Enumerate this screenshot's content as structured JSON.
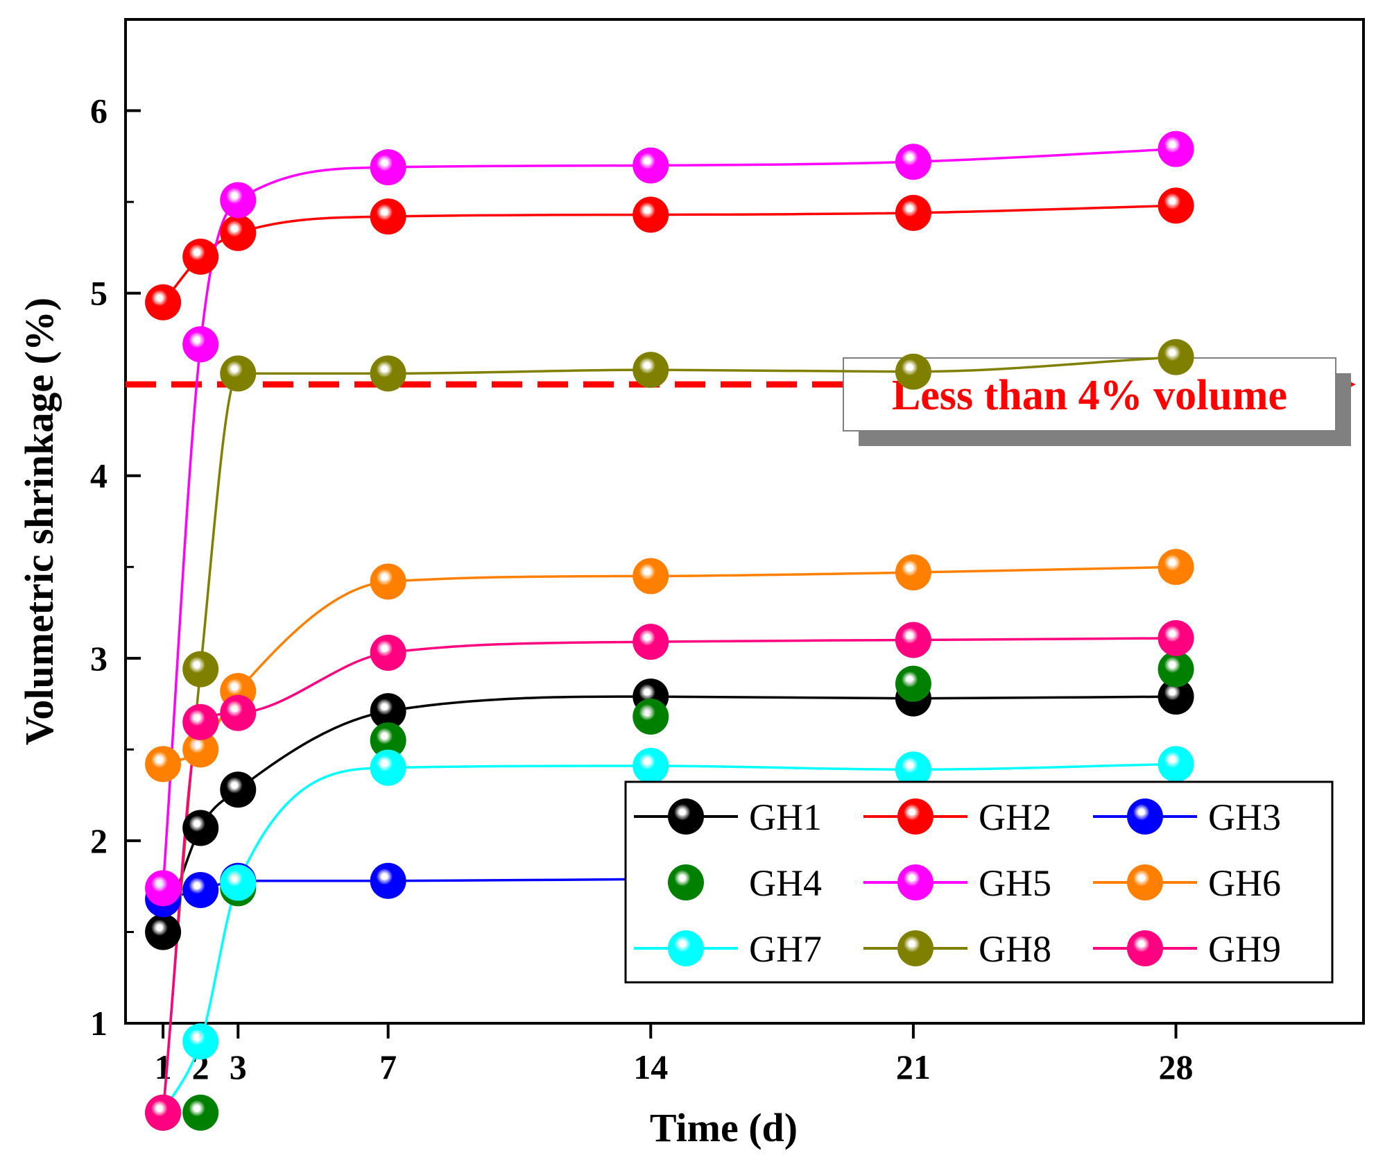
{
  "chart_data": {
    "type": "line",
    "title": "",
    "xlabel": "Time (d)",
    "ylabel": "Volumetric shrinkage (%)",
    "x": [
      1,
      2,
      3,
      7,
      14,
      21,
      28
    ],
    "x_tick_labels": [
      "1",
      "2",
      "3",
      "7",
      "14",
      "21",
      "28"
    ],
    "xlim": [
      0,
      33
    ],
    "ylim": [
      1,
      6.5
    ],
    "y_ticks": [
      1,
      2,
      3,
      4,
      5,
      6
    ],
    "y_tick_labels": [
      "1",
      "2",
      "3",
      "4",
      "5",
      "6"
    ],
    "grid": false,
    "legend_position": "bottom-right",
    "series": [
      {
        "name": "GH1",
        "color": "#000000",
        "line": true,
        "values": [
          1.5,
          2.07,
          2.28,
          2.71,
          2.79,
          2.78,
          2.79
        ]
      },
      {
        "name": "GH2",
        "color": "#ff0000",
        "line": true,
        "values": [
          4.95,
          5.2,
          5.33,
          5.42,
          5.43,
          5.44,
          5.48
        ]
      },
      {
        "name": "GH3",
        "color": "#0000ff",
        "line": true,
        "values": [
          1.68,
          1.73,
          1.78,
          1.78,
          1.79,
          1.8,
          1.81
        ]
      },
      {
        "name": "GH4",
        "color": "#008000",
        "line": false,
        "values": [
          0.51,
          0.51,
          1.74,
          2.55,
          2.68,
          2.86,
          2.94
        ]
      },
      {
        "name": "GH5",
        "color": "#ff00ff",
        "line": true,
        "values": [
          1.74,
          4.72,
          5.51,
          5.69,
          5.7,
          5.72,
          5.79
        ]
      },
      {
        "name": "GH6",
        "color": "#ff8000",
        "line": true,
        "values": [
          2.42,
          2.5,
          2.82,
          3.42,
          3.45,
          3.47,
          3.5
        ]
      },
      {
        "name": "GH7",
        "color": "#00ffff",
        "line": true,
        "values": [
          0.51,
          0.9,
          1.77,
          2.4,
          2.41,
          2.39,
          2.42
        ]
      },
      {
        "name": "GH8",
        "color": "#808000",
        "line": true,
        "values": [
          0.51,
          2.94,
          4.56,
          4.56,
          4.58,
          4.57,
          4.65
        ]
      },
      {
        "name": "GH9",
        "color": "#ff0080",
        "line": true,
        "values": [
          0.51,
          2.65,
          2.7,
          3.03,
          3.09,
          3.1,
          3.11
        ]
      }
    ],
    "reference_line": {
      "y": 4.5,
      "color": "#ff0000",
      "style": "dashed",
      "arrow": "right"
    },
    "annotation": {
      "text": "Less than 4% volume",
      "color": "#ff0000"
    }
  }
}
